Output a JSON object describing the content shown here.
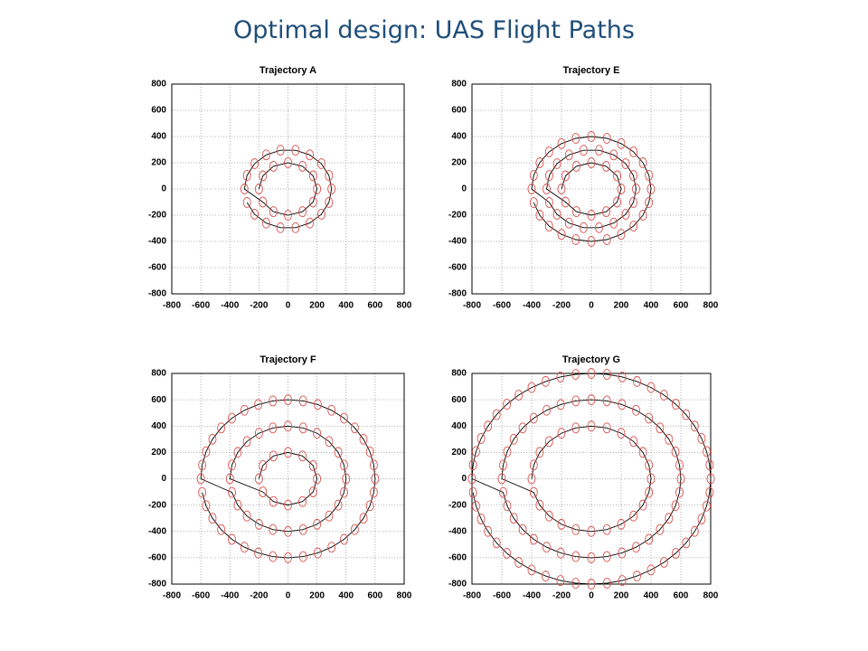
{
  "title": "Optimal design: UAS Flight Paths",
  "chart_data": [
    {
      "type": "line",
      "title": "Trajectory A",
      "xlim": [
        -800,
        800
      ],
      "ylim": [
        -800,
        800
      ],
      "xticks": [
        -800,
        -600,
        -400,
        -200,
        0,
        200,
        400,
        600,
        800
      ],
      "yticks": [
        -800,
        -600,
        -400,
        -200,
        0,
        200,
        400,
        600,
        800
      ],
      "grid": true,
      "line_color": "#000000",
      "x": [
        -200,
        -173,
        -100,
        0,
        100,
        173,
        200,
        173,
        100,
        0,
        -100,
        -173,
        -300,
        -282,
        -230,
        -150,
        -52,
        52,
        150,
        230,
        282,
        300,
        282,
        230,
        150,
        52,
        -52,
        -150,
        -230,
        -282
      ],
      "series": [
        {
          "color": "#d9534f",
          "values": [
            0,
            100,
            173,
            200,
            173,
            100,
            0,
            -100,
            -173,
            -200,
            -173,
            -100,
            0,
            103,
            193,
            260,
            295,
            295,
            260,
            193,
            103,
            0,
            -103,
            -193,
            -260,
            -295,
            -295,
            -260,
            -193,
            -103
          ]
        }
      ]
    },
    {
      "type": "line",
      "title": "Trajectory E",
      "xlim": [
        -800,
        800
      ],
      "ylim": [
        -800,
        800
      ],
      "xticks": [
        -800,
        -600,
        -400,
        -200,
        0,
        200,
        400,
        600,
        800
      ],
      "yticks": [
        -800,
        -600,
        -400,
        -200,
        0,
        200,
        400,
        600,
        800
      ],
      "grid": true,
      "line_color": "#000000",
      "x": [
        -200,
        -173,
        -100,
        0,
        100,
        173,
        200,
        173,
        100,
        0,
        -100,
        -173,
        -300,
        -282,
        -230,
        -150,
        -52,
        52,
        150,
        230,
        282,
        300,
        282,
        230,
        150,
        52,
        -52,
        -150,
        -230,
        -282,
        -400,
        -386,
        -346,
        -283,
        -200,
        -104,
        0,
        104,
        200,
        283,
        346,
        386,
        400,
        386,
        346,
        283,
        200,
        104,
        0,
        -104,
        -200,
        -283,
        -346,
        -386
      ],
      "series": [
        {
          "color": "#d9534f",
          "values": [
            0,
            100,
            173,
            200,
            173,
            100,
            0,
            -100,
            -173,
            -200,
            -173,
            -100,
            0,
            103,
            193,
            260,
            295,
            295,
            260,
            193,
            103,
            0,
            -103,
            -193,
            -260,
            -295,
            -295,
            -260,
            -193,
            -103,
            0,
            104,
            200,
            283,
            346,
            386,
            400,
            386,
            346,
            283,
            200,
            104,
            0,
            -104,
            -200,
            -283,
            -346,
            -386,
            -400,
            -386,
            -346,
            -283,
            -200,
            -104
          ]
        }
      ]
    },
    {
      "type": "line",
      "title": "Trajectory F",
      "xlim": [
        -800,
        800
      ],
      "ylim": [
        -800,
        800
      ],
      "xticks": [
        -800,
        -600,
        -400,
        -200,
        0,
        200,
        400,
        600,
        800
      ],
      "yticks": [
        -800,
        -600,
        -400,
        -200,
        0,
        200,
        400,
        600,
        800
      ],
      "grid": true,
      "line_color": "#000000",
      "x": [
        -200,
        -173,
        -100,
        0,
        100,
        173,
        200,
        173,
        100,
        0,
        -100,
        -173,
        -400,
        -386,
        -346,
        -283,
        -200,
        -104,
        0,
        104,
        200,
        283,
        346,
        386,
        400,
        386,
        346,
        283,
        200,
        104,
        0,
        -104,
        -200,
        -283,
        -346,
        -386,
        -600,
        -591,
        -564,
        -520,
        -460,
        -386,
        -300,
        -205,
        -104,
        0,
        104,
        205,
        300,
        386,
        460,
        520,
        564,
        591,
        600,
        591,
        564,
        520,
        460,
        386,
        300,
        205,
        104,
        0,
        -104,
        -205,
        -300,
        -386,
        -460,
        -520,
        -564,
        -591
      ],
      "series": [
        {
          "color": "#d9534f",
          "values": [
            0,
            100,
            173,
            200,
            173,
            100,
            0,
            -100,
            -173,
            -200,
            -173,
            -100,
            0,
            104,
            200,
            283,
            346,
            386,
            400,
            386,
            346,
            283,
            200,
            104,
            0,
            -104,
            -200,
            -283,
            -346,
            -386,
            -400,
            -386,
            -346,
            -283,
            -200,
            -104,
            0,
            104,
            205,
            300,
            386,
            460,
            520,
            564,
            591,
            600,
            591,
            564,
            520,
            460,
            386,
            300,
            205,
            104,
            0,
            -104,
            -205,
            -300,
            -386,
            -460,
            -520,
            -564,
            -591,
            -600,
            -591,
            -564,
            -520,
            -460,
            -386,
            -300,
            -205,
            -104
          ]
        }
      ]
    },
    {
      "type": "line",
      "title": "Trajectory G",
      "xlim": [
        -800,
        800
      ],
      "ylim": [
        -800,
        800
      ],
      "xticks": [
        -800,
        -600,
        -400,
        -200,
        0,
        200,
        400,
        600,
        800
      ],
      "yticks": [
        -800,
        -600,
        -400,
        -200,
        0,
        200,
        400,
        600,
        800
      ],
      "grid": true,
      "line_color": "#000000",
      "x": [
        -400,
        -386,
        -346,
        -283,
        -200,
        -104,
        0,
        104,
        200,
        283,
        346,
        386,
        400,
        386,
        346,
        283,
        200,
        104,
        0,
        -104,
        -200,
        -283,
        -346,
        -386,
        -600,
        -591,
        -564,
        -520,
        -460,
        -386,
        -300,
        -205,
        -104,
        0,
        104,
        205,
        300,
        386,
        460,
        520,
        564,
        591,
        600,
        591,
        564,
        520,
        460,
        386,
        300,
        205,
        104,
        0,
        -104,
        -205,
        -300,
        -386,
        -460,
        -520,
        -564,
        -591,
        -800,
        -793,
        -773,
        -739,
        -693,
        -635,
        -566,
        -487,
        -400,
        -306,
        -207,
        -105,
        0,
        105,
        207,
        306,
        400,
        487,
        566,
        635,
        693,
        739,
        773,
        793,
        800,
        793,
        773,
        739,
        693,
        635,
        566,
        487,
        400,
        306,
        207,
        105,
        0,
        -105,
        -207,
        -306,
        -400,
        -487,
        -566,
        -635,
        -693,
        -739,
        -773,
        -793
      ],
      "series": [
        {
          "color": "#d9534f",
          "values": [
            0,
            104,
            200,
            283,
            346,
            386,
            400,
            386,
            346,
            283,
            200,
            104,
            0,
            -104,
            -200,
            -283,
            -346,
            -386,
            -400,
            -386,
            -346,
            -283,
            -200,
            -104,
            0,
            104,
            205,
            300,
            386,
            460,
            520,
            564,
            591,
            600,
            591,
            564,
            520,
            460,
            386,
            300,
            205,
            104,
            0,
            -104,
            -205,
            -300,
            -386,
            -460,
            -520,
            -564,
            -591,
            -600,
            -591,
            -564,
            -520,
            -460,
            -386,
            -300,
            -205,
            -104,
            0,
            105,
            207,
            306,
            400,
            487,
            566,
            635,
            693,
            739,
            773,
            793,
            800,
            793,
            773,
            739,
            693,
            635,
            566,
            487,
            400,
            306,
            207,
            105,
            0,
            -105,
            -207,
            -306,
            -400,
            -487,
            -566,
            -635,
            -693,
            -739,
            -773,
            -793,
            -800,
            -793,
            -773,
            -739,
            -693,
            -635,
            -566,
            -487,
            -400,
            -306,
            -207,
            -105
          ]
        }
      ]
    }
  ]
}
